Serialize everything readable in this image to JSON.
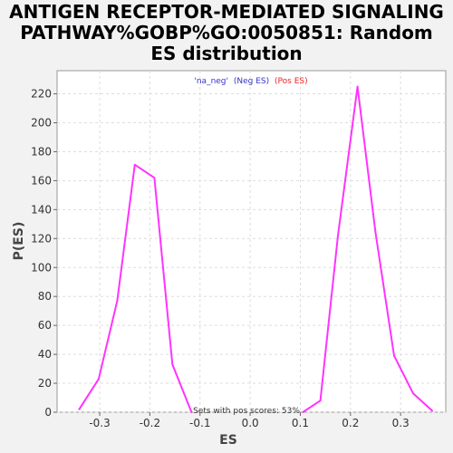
{
  "chart_data": {
    "type": "line",
    "title_lines": [
      "ANTIGEN RECEPTOR-MEDIATED SIGNALING",
      "PATHWAY%GOBP%GO:0050851: Random",
      "ES distribution"
    ],
    "xlabel": "ES",
    "ylabel": "P(ES)",
    "xlim": [
      -0.385,
      0.39
    ],
    "ylim": [
      0,
      236
    ],
    "xticks": [
      -0.3,
      -0.2,
      -0.1,
      0.0,
      0.1,
      0.2,
      0.3
    ],
    "xtick_labels": [
      "-0.3",
      "-0.2",
      "-0.1",
      "0.0",
      "0.1",
      "0.2",
      "0.3"
    ],
    "yticks": [
      0,
      20,
      40,
      60,
      80,
      100,
      120,
      140,
      160,
      180,
      200,
      220
    ],
    "ytick_labels": [
      "0",
      "20",
      "40",
      "60",
      "80",
      "100",
      "120",
      "140",
      "160",
      "180",
      "200",
      "220"
    ],
    "grid": true,
    "legend": {
      "placement": "top-center",
      "entries": [
        {
          "text": "'na_neg'",
          "color": "#3333cc"
        },
        {
          "text": "(Neg ES)",
          "color": "#3333cc"
        },
        {
          "text": "(Pos ES)",
          "color": "#ee2222"
        }
      ]
    },
    "annotation": "Sets with pos scores: 53%",
    "series": [
      {
        "color": "#ff33ff",
        "x": [
          -0.341,
          -0.302,
          -0.265,
          -0.23,
          -0.191,
          -0.155,
          -0.117,
          0.105,
          0.14,
          0.175,
          0.214,
          0.25,
          0.287,
          0.325,
          0.363
        ],
        "y": [
          2,
          23,
          77,
          171,
          162,
          33,
          0,
          0,
          8,
          122,
          225,
          124,
          39,
          13,
          1
        ]
      }
    ]
  }
}
